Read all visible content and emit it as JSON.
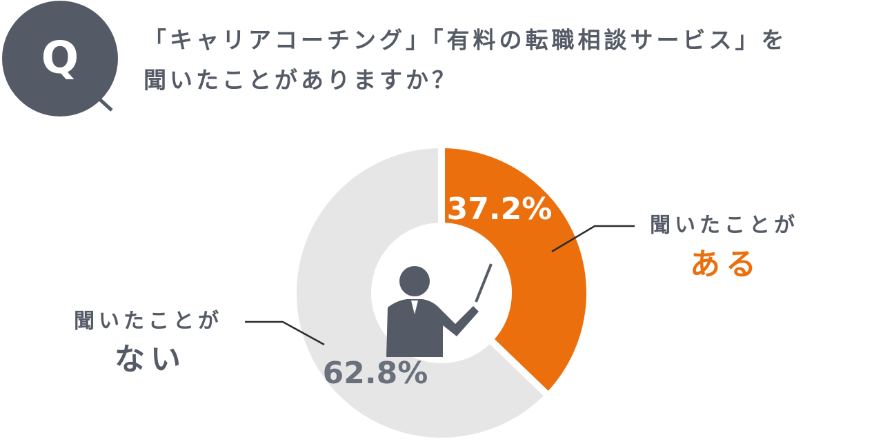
{
  "badge": "Q",
  "chart_data": {
    "type": "donut",
    "title": [
      "「キャリアコーチング」「有料の転職相談サービス」を",
      "聞いたことがありますか？"
    ],
    "categories": [
      [
        "聞いたことが",
        "ある"
      ],
      [
        "聞いたことが",
        "ない"
      ]
    ],
    "values": [
      37.2,
      62.8
    ],
    "value_labels": [
      "37.2%",
      "62.8%"
    ],
    "colors": [
      "#eb6f0c",
      "#e6e6e6"
    ]
  }
}
